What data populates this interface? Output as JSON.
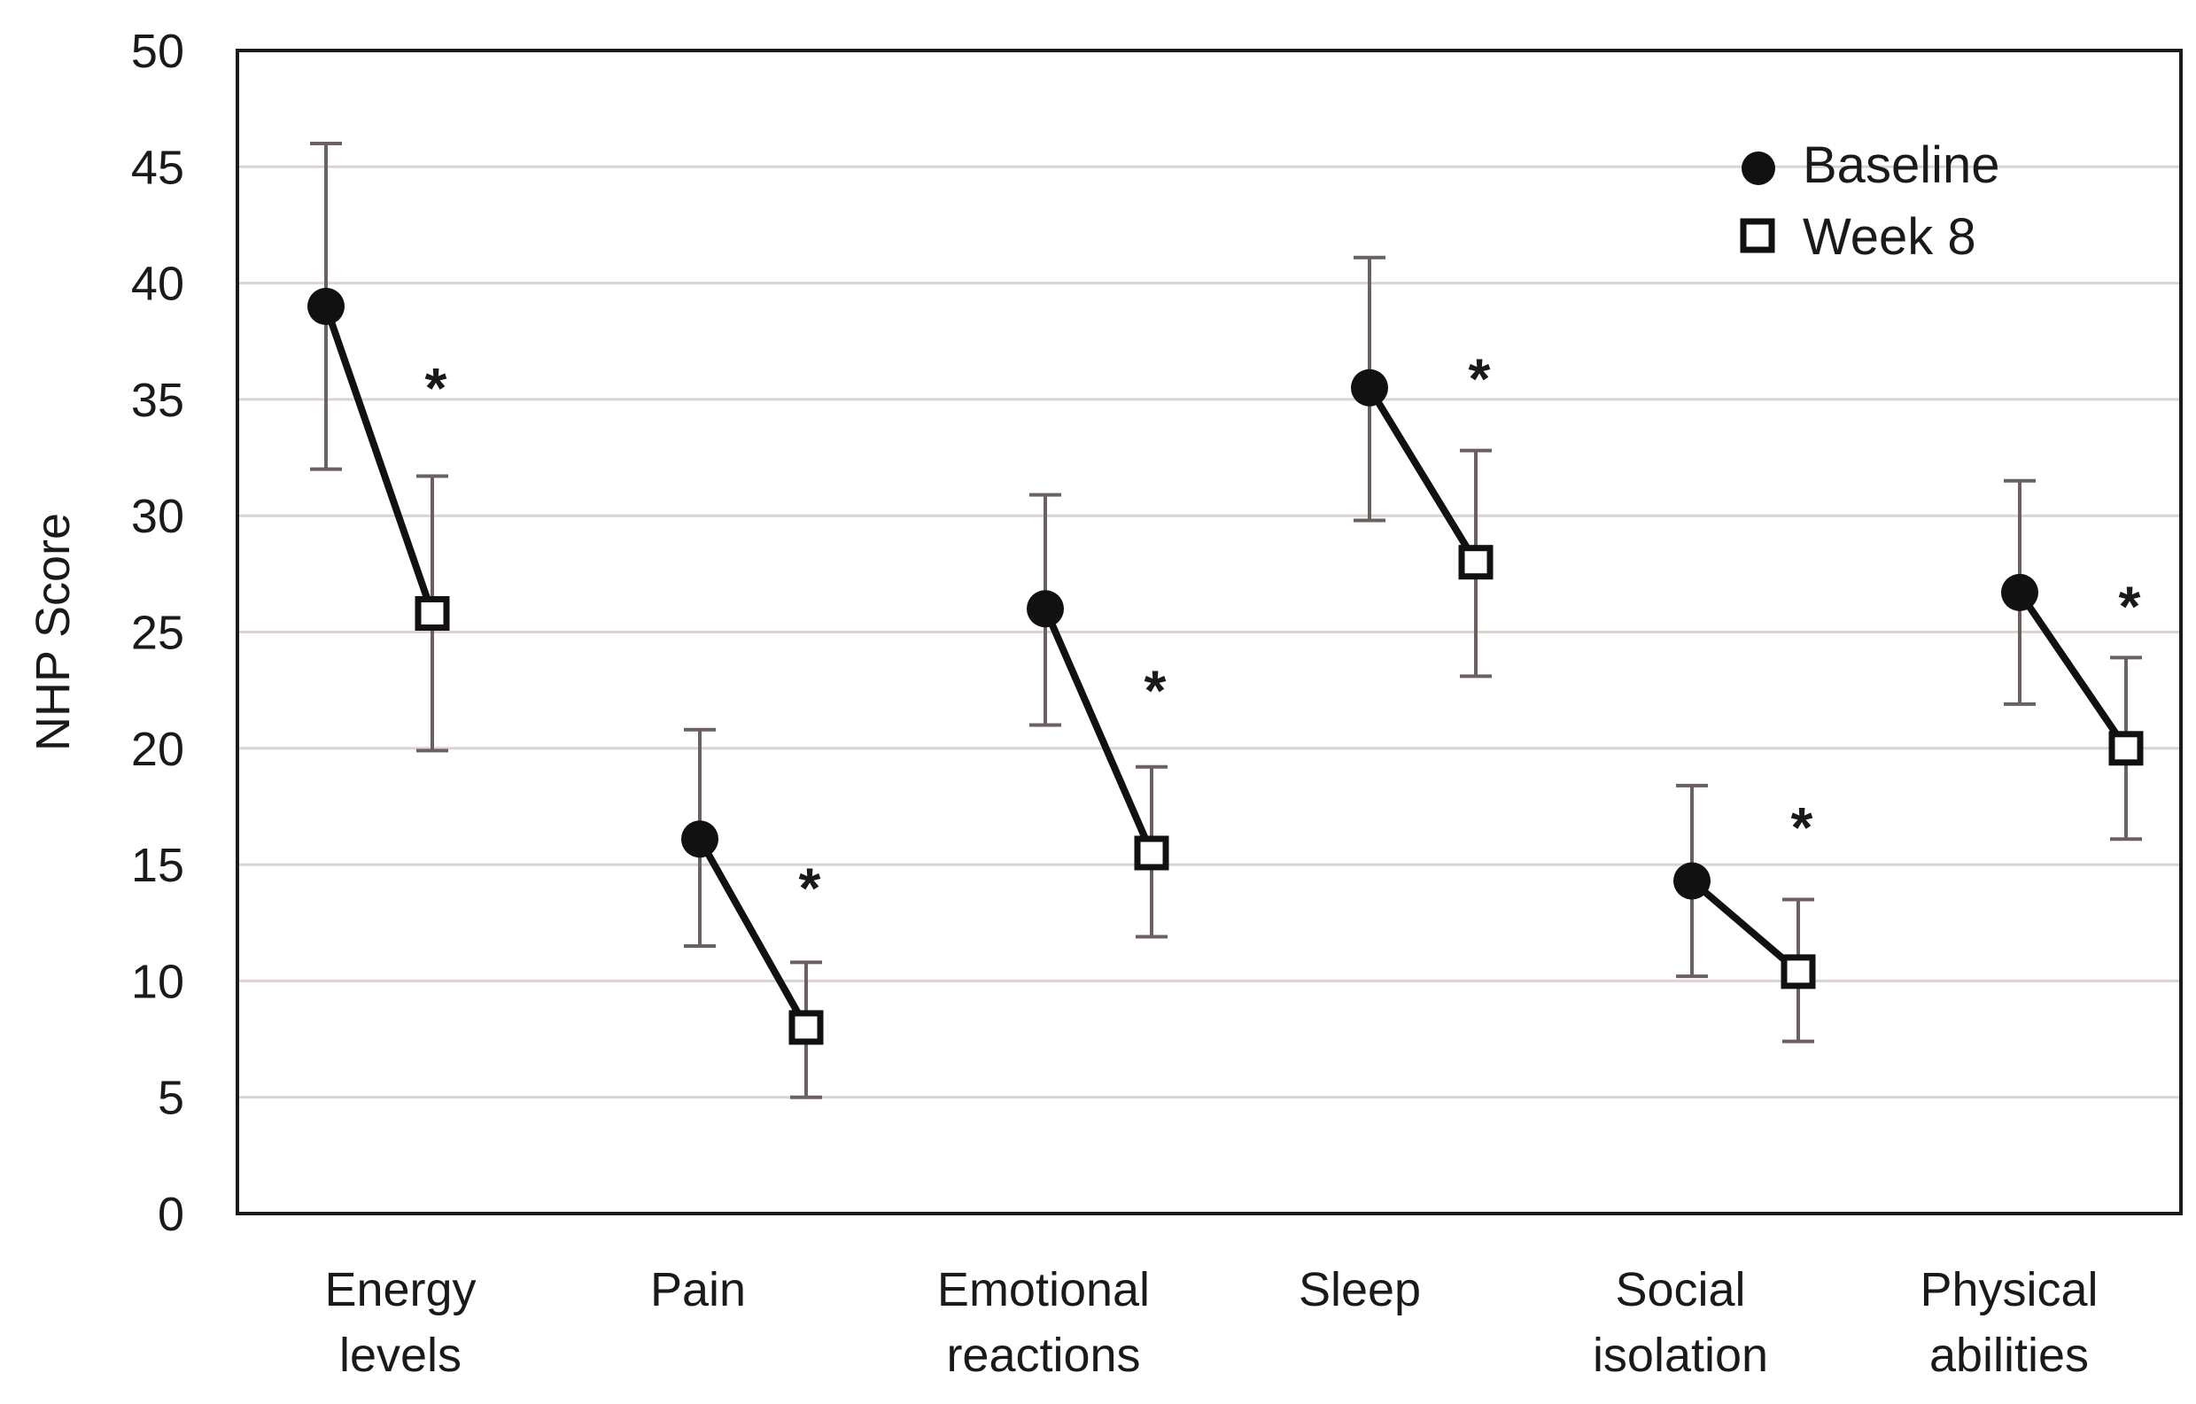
{
  "chart_data": {
    "type": "scatter",
    "ylabel": "NHP Score",
    "xlabel": "",
    "ylim": [
      0,
      50
    ],
    "yticks": [
      0,
      5,
      10,
      15,
      20,
      25,
      30,
      35,
      40,
      45,
      50
    ],
    "grid": true,
    "legend_position": "top-right",
    "categories": [
      [
        "Energy",
        "levels"
      ],
      [
        "Pain"
      ],
      [
        "Emotional",
        "reactions"
      ],
      [
        "Sleep"
      ],
      [
        "Social",
        "isolation"
      ],
      [
        "Physical",
        "abilities"
      ]
    ],
    "series": [
      {
        "name": "Baseline",
        "marker": "filled-circle",
        "values": [
          39.0,
          16.1,
          26.0,
          35.5,
          14.3,
          26.7
        ],
        "error_low": [
          32.0,
          11.5,
          21.0,
          29.8,
          10.2,
          21.9
        ],
        "error_high": [
          46.0,
          20.8,
          30.9,
          41.1,
          18.4,
          31.5
        ]
      },
      {
        "name": "Week 8",
        "marker": "open-square",
        "values": [
          25.8,
          8.0,
          15.5,
          28.0,
          10.4,
          20.0
        ],
        "error_low": [
          19.9,
          5.0,
          11.9,
          23.1,
          7.4,
          16.1
        ],
        "error_high": [
          31.7,
          10.8,
          19.2,
          32.8,
          13.5,
          23.9
        ]
      }
    ],
    "annotations": [
      {
        "text": "*",
        "category": 0,
        "y": 35.8
      },
      {
        "text": "*",
        "category": 1,
        "y": 14.3
      },
      {
        "text": "*",
        "category": 2,
        "y": 22.8
      },
      {
        "text": "*",
        "category": 3,
        "y": 36.2
      },
      {
        "text": "*",
        "category": 4,
        "y": 16.9
      },
      {
        "text": "*",
        "category": 5,
        "y": 26.4
      }
    ],
    "colors": {
      "line": "#111111",
      "error_bar": "#6b6160",
      "grid": "#dcd2d0",
      "axis": "#1a1a1a"
    }
  }
}
